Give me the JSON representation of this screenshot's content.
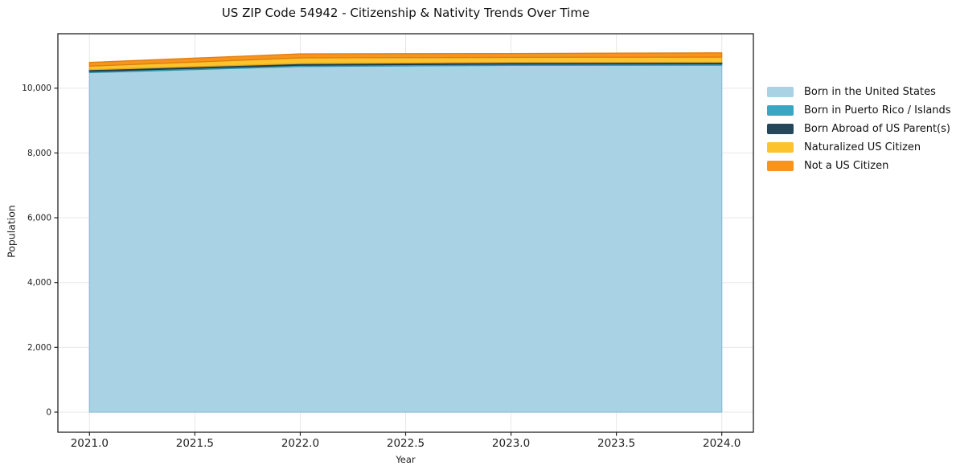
{
  "chart_data": {
    "type": "area",
    "stacked": true,
    "title": "US ZIP Code 54942 - Citizenship & Nativity Trends Over Time",
    "xlabel": "Year",
    "ylabel": "Population",
    "x": [
      2021,
      2022,
      2023,
      2024
    ],
    "series": [
      {
        "name": "Born in the United States",
        "color": "#a9d3e5",
        "edge": "#8abfd6",
        "values": [
          10480,
          10670,
          10705,
          10710
        ]
      },
      {
        "name": "Born in Puerto Rico / Islands",
        "color": "#3aa7c2",
        "edge": "#2f93ac",
        "values": [
          40,
          40,
          40,
          40
        ]
      },
      {
        "name": "Born Abroad of US Parent(s)",
        "color": "#25475a",
        "edge": "#1d3948",
        "values": [
          50,
          50,
          50,
          50
        ]
      },
      {
        "name": "Naturalized US Citizen",
        "color": "#fcc32d",
        "edge": "#e2a81b",
        "values": [
          110,
          175,
          155,
          160
        ]
      },
      {
        "name": "Not a US Citizen",
        "color": "#f7941e",
        "edge": "#dd7f10",
        "values": [
          115,
          125,
          120,
          130
        ]
      }
    ],
    "xlim": [
      2020.85,
      2024.15
    ],
    "ylim": [
      -620,
      11680
    ],
    "xticks": {
      "values": [
        2021.0,
        2021.5,
        2022.0,
        2022.5,
        2023.0,
        2023.5,
        2024.0
      ],
      "labels": [
        "2021.0",
        "2021.5",
        "2022.0",
        "2022.5",
        "2023.0",
        "2023.5",
        "2024.0"
      ]
    },
    "yticks": {
      "values": [
        0,
        2000,
        4000,
        6000,
        8000,
        10000
      ],
      "labels": [
        "0",
        "2,000",
        "4,000",
        "6,000",
        "8,000",
        "10,000"
      ]
    },
    "grid": true,
    "grid_color": "#e7e7e7",
    "spine_color": "#222222",
    "tick_label_color": "#222222",
    "legend_position": "right",
    "background": "#ffffff"
  }
}
